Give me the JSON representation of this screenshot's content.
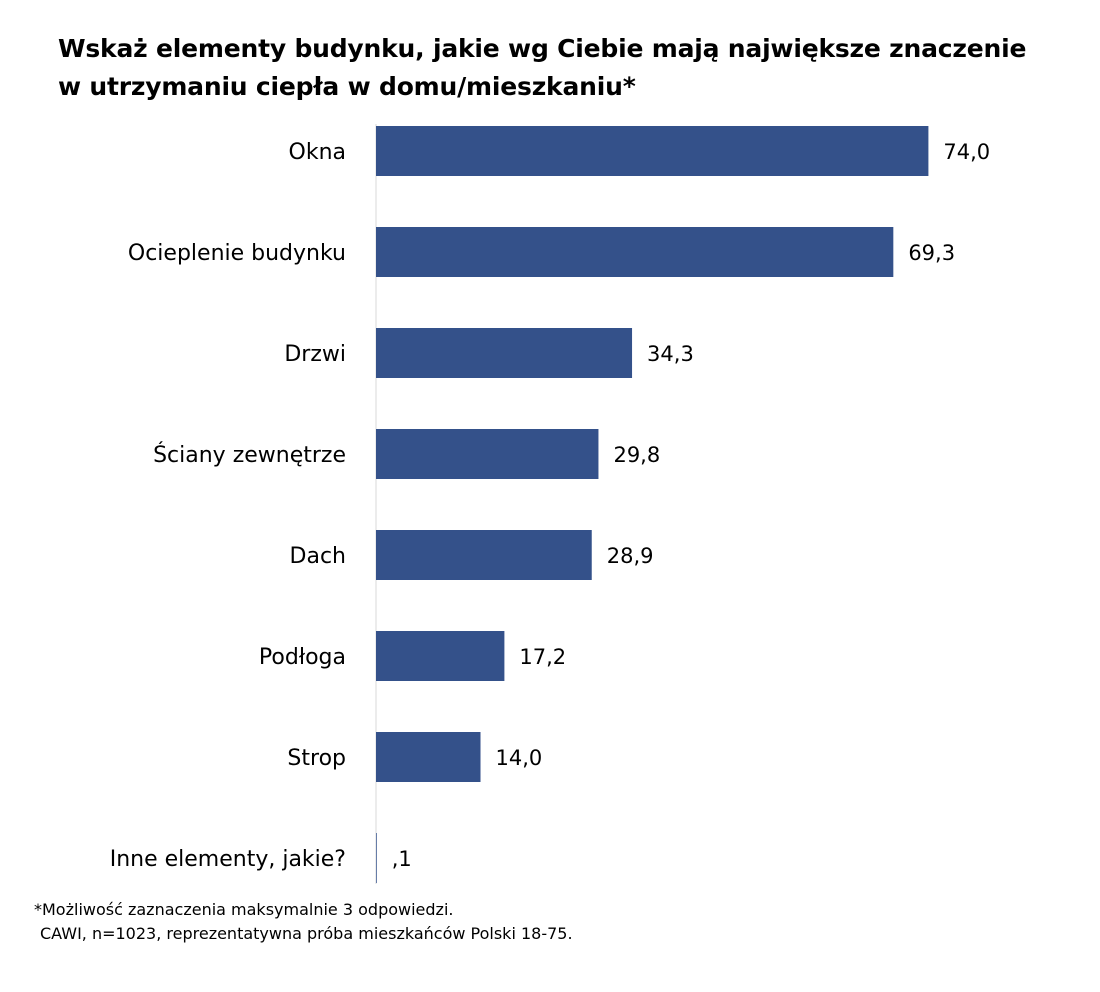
{
  "title_lines": [
    "Wskaż elementy budynku, jakie wg Ciebie mają największe znaczenie",
    "w utrzymaniu ciepła w domu/mieszkaniu*"
  ],
  "notes": [
    "*Możliwość zaznaczenia maksymalnie 3 odpowiedzi.",
    "CAWI, n=1023, reprezentatywna próba mieszkańców Polski 18-75."
  ],
  "colors": {
    "bar": "#34518A",
    "axis": "#D9D9D9",
    "text": "#000000"
  },
  "chart_data": {
    "type": "bar",
    "orientation": "horizontal",
    "categories": [
      "Okna",
      "Ocieplenie budynku",
      "Drzwi",
      "Ściany zewnętrze",
      "Dach",
      "Podłoga",
      "Strop",
      "Inne elementy, jakie?"
    ],
    "values": [
      74.0,
      69.3,
      34.3,
      29.8,
      28.9,
      17.2,
      14.0,
      0.1
    ],
    "data_labels": [
      "74,0",
      "69,3",
      "34,3",
      "29,8",
      "28,9",
      "17,2",
      "14,0",
      ",1"
    ],
    "xlim": [
      0,
      80
    ],
    "grid": false,
    "legend": "none"
  }
}
